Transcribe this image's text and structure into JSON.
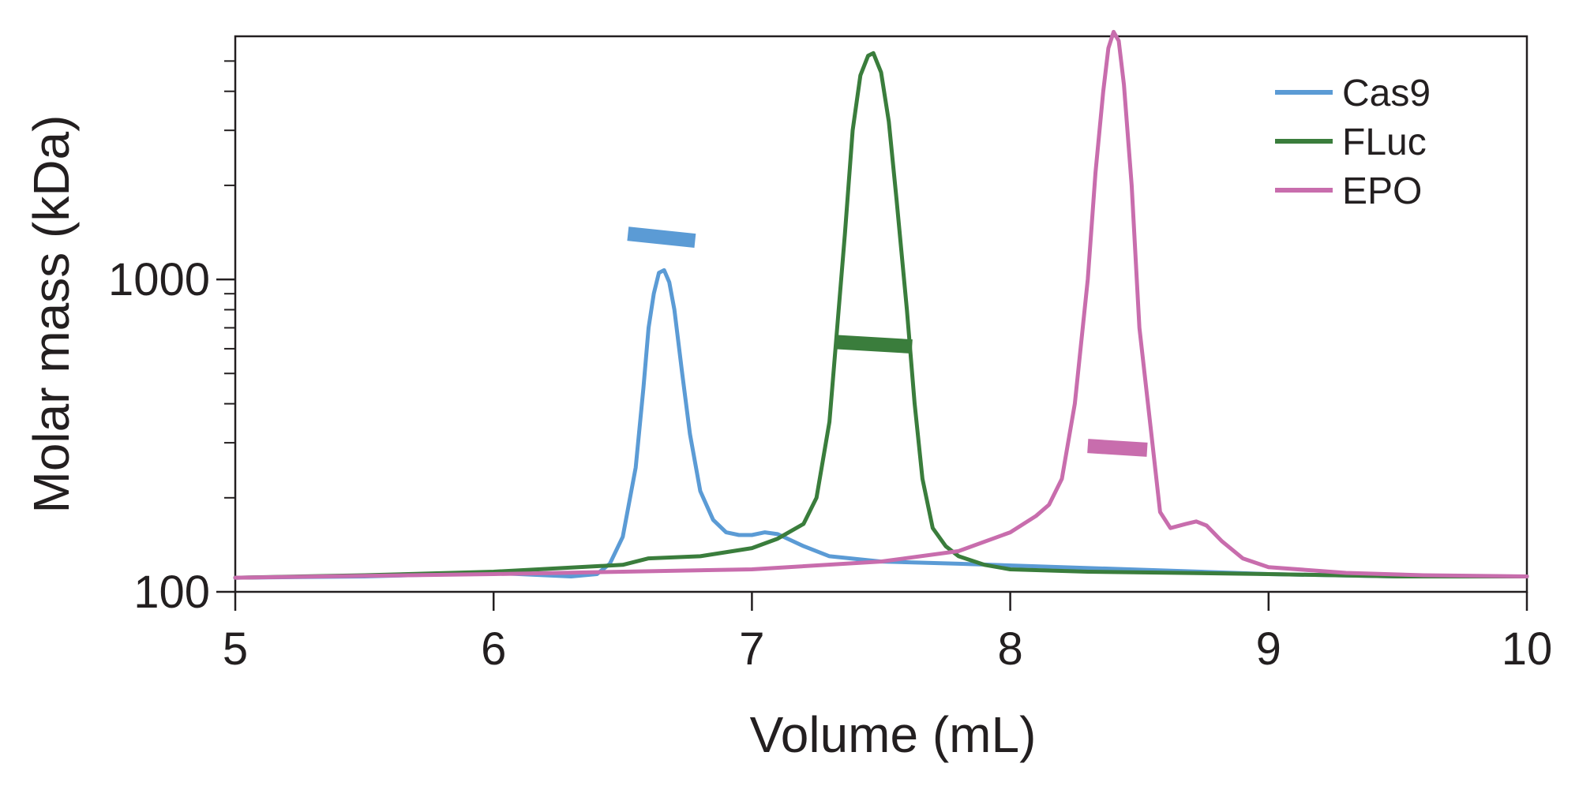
{
  "chart_data": {
    "type": "line",
    "xlabel": "Volume (mL)",
    "ylabel": "Molar mass (kDa)",
    "xlim": [
      5,
      10
    ],
    "ylim": [
      100,
      6000
    ],
    "y_scale": "log",
    "x_ticks": [
      5,
      6,
      7,
      8,
      9,
      10
    ],
    "y_tick_labels": [
      100,
      1000
    ],
    "grid": false,
    "legend_position": "top-right",
    "series": [
      {
        "name": "Cas9",
        "color": "#5b9bd5",
        "x": [
          5.0,
          5.5,
          6.0,
          6.3,
          6.4,
          6.45,
          6.5,
          6.55,
          6.58,
          6.6,
          6.62,
          6.64,
          6.66,
          6.68,
          6.7,
          6.73,
          6.76,
          6.8,
          6.85,
          6.9,
          6.95,
          7.0,
          7.05,
          7.1,
          7.2,
          7.3,
          7.5,
          7.8,
          8.2,
          8.6,
          9.0,
          9.5,
          10.0
        ],
        "y": [
          111,
          112,
          115,
          112,
          114,
          123,
          150,
          250,
          450,
          700,
          900,
          1050,
          1070,
          980,
          800,
          500,
          320,
          210,
          170,
          155,
          152,
          152,
          155,
          153,
          140,
          130,
          125,
          123,
          120,
          117,
          114,
          112,
          112
        ]
      },
      {
        "name": "FLuc",
        "color": "#3a7d3c",
        "x": [
          5.0,
          5.5,
          6.0,
          6.5,
          6.6,
          6.8,
          7.0,
          7.1,
          7.2,
          7.25,
          7.3,
          7.33,
          7.36,
          7.39,
          7.42,
          7.45,
          7.47,
          7.5,
          7.53,
          7.56,
          7.6,
          7.63,
          7.66,
          7.7,
          7.75,
          7.8,
          7.9,
          8.0,
          8.3,
          9.0,
          9.5,
          10.0
        ],
        "y": [
          111,
          113,
          116,
          122,
          128,
          130,
          138,
          148,
          165,
          200,
          350,
          700,
          1400,
          3000,
          4500,
          5200,
          5300,
          4600,
          3200,
          1800,
          800,
          400,
          230,
          160,
          140,
          130,
          122,
          118,
          116,
          114,
          112,
          112
        ]
      },
      {
        "name": "EPO",
        "color": "#c86dad",
        "x": [
          5.0,
          6.0,
          7.0,
          7.5,
          7.8,
          8.0,
          8.1,
          8.15,
          8.2,
          8.25,
          8.3,
          8.33,
          8.36,
          8.38,
          8.4,
          8.42,
          8.44,
          8.47,
          8.5,
          8.55,
          8.58,
          8.62,
          8.68,
          8.72,
          8.76,
          8.82,
          8.9,
          9.0,
          9.3,
          9.6,
          10.0
        ],
        "y": [
          111,
          114,
          118,
          125,
          135,
          155,
          175,
          190,
          230,
          400,
          1000,
          2200,
          4000,
          5500,
          6200,
          5800,
          4200,
          2000,
          700,
          300,
          180,
          160,
          165,
          168,
          163,
          145,
          128,
          120,
          115,
          113,
          112
        ]
      }
    ],
    "molar_mass_segments": [
      {
        "series": "Cas9",
        "color": "#5b9bd5",
        "x": [
          6.52,
          6.78
        ],
        "y": [
          1400,
          1330
        ]
      },
      {
        "series": "FLuc",
        "color": "#3a7d3c",
        "x": [
          7.33,
          7.62
        ],
        "y": [
          630,
          610
        ]
      },
      {
        "series": "EPO",
        "color": "#c86dad",
        "x": [
          8.3,
          8.53
        ],
        "y": [
          293,
          285
        ]
      }
    ]
  }
}
